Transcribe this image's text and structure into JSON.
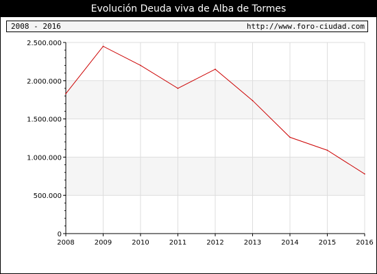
{
  "header": {
    "title": "Evolución Deuda viva de Alba de Tormes",
    "period": "2008 - 2016",
    "url": "http://www.foro-ciudad.com"
  },
  "colors": {
    "line": "#cc0000",
    "band": "#f5f5f5",
    "grid": "#dddddd",
    "axis": "#000000"
  },
  "chart_data": {
    "type": "line",
    "title": "Evolución Deuda viva de Alba de Tormes",
    "xlabel": "",
    "ylabel": "",
    "ylim": [
      0,
      2500000
    ],
    "grid": true,
    "x": [
      "2008",
      "2009",
      "2010",
      "2011",
      "2012",
      "2013",
      "2014",
      "2015",
      "2016"
    ],
    "y_ticks": [
      0,
      500000,
      1000000,
      1500000,
      2000000,
      2500000
    ],
    "y_tick_labels": [
      "0",
      "500.000",
      "1.000.000",
      "1.500.000",
      "2.000.000",
      "2.500.000"
    ],
    "series": [
      {
        "values": [
          1830000,
          2450000,
          2200000,
          1900000,
          2150000,
          1740000,
          1260000,
          1090000,
          780000
        ]
      }
    ]
  }
}
